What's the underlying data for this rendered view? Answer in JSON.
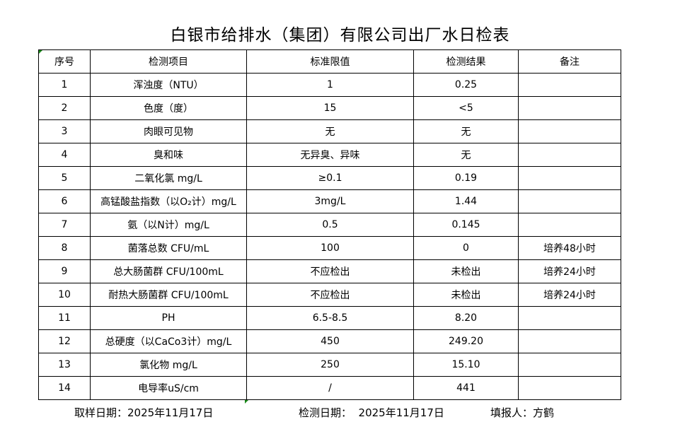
{
  "title": "白银市给排水（集团）有限公司出厂水日检表",
  "columns": [
    "序号",
    "检测项目",
    "标准限值",
    "检测结果",
    "备注"
  ],
  "rows": [
    [
      "1",
      "浑浊度（NTU）",
      "1",
      "0.25",
      ""
    ],
    [
      "2",
      "色度（度）",
      "15",
      "<5",
      ""
    ],
    [
      "3",
      "肉眼可见物",
      "无",
      "无",
      ""
    ],
    [
      "4",
      "臭和味",
      "无异臭、异味",
      "无",
      ""
    ],
    [
      "5",
      "二氧化氯 mg/L",
      "≥0.1",
      "0.19",
      ""
    ],
    [
      "6",
      "高锰酸盐指数（以O₂计）mg/L",
      "3mg/L",
      "1.44",
      ""
    ],
    [
      "7",
      "氨（以N计）mg/L",
      "0.5",
      "0.145",
      ""
    ],
    [
      "8",
      "菌落总数 CFU/mL",
      "100",
      "0",
      "培养48小时"
    ],
    [
      "9",
      "总大肠菌群 CFU/100mL",
      "不应检出",
      "未检出",
      "培养24小时"
    ],
    [
      "10",
      "耐热大肠菌群 CFU/100mL",
      "不应检出",
      "未检出",
      "培养24小时"
    ],
    [
      "11",
      "PH",
      "6.5-8.5",
      "8.20",
      ""
    ],
    [
      "12",
      "总硬度（以CaCo3计）mg/L",
      "450",
      "249.20",
      ""
    ],
    [
      "13",
      "氯化物 mg/L",
      "250",
      "15.10",
      ""
    ],
    [
      "14",
      "电导率uS/cm",
      "/",
      "441",
      ""
    ]
  ],
  "footer": {
    "sampling_date": "取样日期：2025年11月17日",
    "test_date": "检测日期：  2025年11月17日",
    "reporter": "填报人：方鹤"
  }
}
